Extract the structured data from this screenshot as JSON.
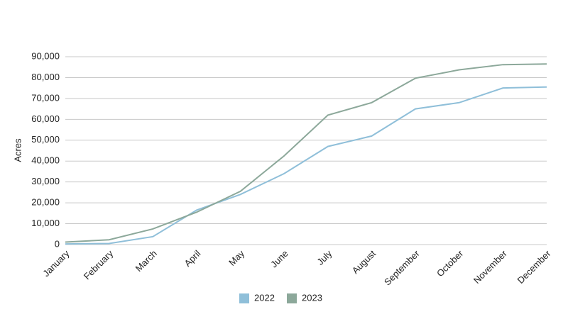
{
  "chart_data": {
    "type": "line",
    "y_label": "Acres",
    "categories": [
      "January",
      "February",
      "March",
      "April",
      "May",
      "June",
      "July",
      "August",
      "September",
      "October",
      "November",
      "December"
    ],
    "series": [
      {
        "name": "2022",
        "color": "#8fbfd9",
        "values": [
          300,
          500,
          3800,
          16500,
          24000,
          34000,
          47000,
          52000,
          65000,
          68000,
          75000,
          75500
        ]
      },
      {
        "name": "2023",
        "color": "#8ca89a",
        "values": [
          1200,
          2300,
          7500,
          15500,
          25500,
          42500,
          62000,
          68000,
          79700,
          83700,
          86200,
          86500
        ]
      }
    ],
    "ylim": [
      0,
      90000
    ],
    "yticks": [
      0,
      {
        "value": 10000,
        "label": "10,000"
      },
      {
        "value": 20000,
        "label": "20,000"
      },
      {
        "value": 30000,
        "label": "30,000"
      },
      {
        "value": 40000,
        "label": "40,000"
      },
      {
        "value": 50000,
        "label": "50,000"
      },
      {
        "value": 60000,
        "label": "60,000"
      },
      {
        "value": 70000,
        "label": "70,000"
      },
      {
        "value": 80000,
        "label": "80,000"
      },
      {
        "value": 90000,
        "label": "90,000"
      }
    ],
    "grid": true,
    "legend": "bottom"
  }
}
